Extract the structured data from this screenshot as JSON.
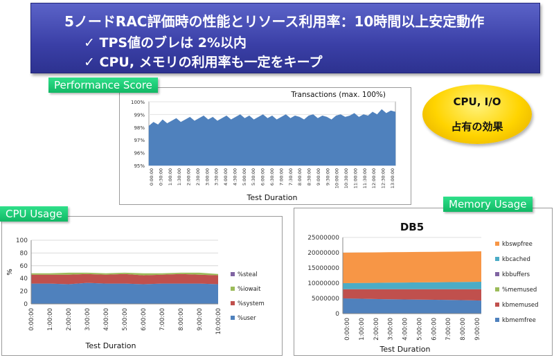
{
  "banner": {
    "title": "5ノードRAC評価時の性能とリソース利用率：10時間以上安定動作",
    "bullet1": "✓ TPS値のブレは 2%以内",
    "bullet2": "✓ CPU, メモリの利用率も一定をキープ"
  },
  "callout": {
    "line1": "CPU, I/O",
    "line2": "占有の効果"
  },
  "panels": {
    "performance_label": "Performance Score",
    "cpu_label": "CPU Usage",
    "memory_label": "Memory Usage"
  },
  "colors": {
    "banner": "#3a3fa6",
    "tag_green": "#12b865",
    "callout_yellow": "#ffd400",
    "tps_fill": "#4f81bd",
    "user": "#4f81bd",
    "system": "#c0504d",
    "iowait": "#9bbb59",
    "steal": "#8064a2",
    "kbmemfree": "#4f81bd",
    "kbmemused": "#c0504d",
    "memused_pct": "#9bbb59",
    "kbbuffers": "#8064a2",
    "kbcached": "#4bacc6",
    "kbswpfree": "#f79646"
  },
  "chart_data": [
    {
      "id": "tps",
      "type": "area",
      "title": "Transactions (max. 100%)",
      "xlabel": "Test Duration",
      "ylabel": "",
      "y_ticks": [
        "95%",
        "96%",
        "97%",
        "98%",
        "99%",
        "100%"
      ],
      "ylim": [
        95,
        100
      ],
      "x_ticks": [
        "0:00:00",
        "0:30:00",
        "1:00:00",
        "1:30:00",
        "2:00:00",
        "2:30:00",
        "3:00:00",
        "3:30:00",
        "4:00:00",
        "4:30:00",
        "5:00:00",
        "5:30:00",
        "6:00:00",
        "6:30:00",
        "7:00:00",
        "7:30:00",
        "8:00:00",
        "8:30:00",
        "9:00:00",
        "9:30:00",
        "10:00:00",
        "10:30:00",
        "11:00:00",
        "11:30:00",
        "12:00:00",
        "12:30:00",
        "13:00:00"
      ],
      "series": [
        {
          "values": [
            98.1,
            98.4,
            98.2,
            98.6,
            98.3,
            98.5,
            98.7,
            98.4,
            98.6,
            98.8,
            98.5,
            98.7,
            98.9,
            98.6,
            98.8,
            98.5,
            98.7,
            98.9,
            98.6,
            98.8,
            99.0,
            98.7,
            98.9,
            98.6,
            98.8,
            99.0,
            98.7,
            98.9,
            98.6,
            98.8,
            99.0,
            98.7,
            98.9,
            98.8,
            98.6,
            98.9,
            99.0,
            98.7,
            98.9,
            98.8,
            98.6,
            98.9,
            99.0,
            98.8,
            98.9,
            99.1,
            98.8,
            99.0,
            98.9,
            99.2,
            99.0,
            99.4,
            99.1,
            99.3,
            99.2
          ]
        }
      ],
      "grid": true
    },
    {
      "id": "cpu",
      "type": "area",
      "stacked": true,
      "title": "",
      "xlabel": "Test Duration",
      "ylabel": "%",
      "ylim": [
        0,
        100
      ],
      "y_ticks": [
        "0",
        "10",
        "20",
        "30",
        "40",
        "50",
        "60",
        "70",
        "80",
        "90",
        "100"
      ],
      "x_ticks": [
        "0:00:00",
        "1:00:00",
        "2:00:00",
        "3:00:00",
        "4:00:00",
        "5:00:00",
        "6:00:00",
        "7:00:00",
        "8:00:00",
        "9:00:00",
        "10:00:00"
      ],
      "legend": [
        "%steal",
        "%iowait",
        "%system",
        "%user"
      ],
      "series": [
        {
          "name": "%user",
          "values": [
            32,
            32,
            31,
            33,
            32,
            32,
            31,
            32,
            32,
            32,
            31
          ]
        },
        {
          "name": "%system",
          "values": [
            14,
            14,
            15,
            14,
            14,
            15,
            14,
            14,
            15,
            14,
            14
          ]
        },
        {
          "name": "%iowait",
          "values": [
            2,
            2,
            3,
            2,
            2,
            2,
            3,
            2,
            2,
            3,
            2
          ]
        },
        {
          "name": "%steal",
          "values": [
            0,
            0,
            0,
            0,
            0,
            0,
            0,
            0,
            0,
            0,
            0
          ]
        }
      ],
      "grid": true
    },
    {
      "id": "mem",
      "type": "area",
      "stacked": true,
      "title": "DB5",
      "xlabel": "Test Duration",
      "ylabel": "",
      "ylim": [
        0,
        25000000
      ],
      "y_ticks": [
        "0",
        "5000000",
        "10000000",
        "15000000",
        "20000000",
        "25000000"
      ],
      "x_ticks": [
        "0:00:00",
        "1:00:00",
        "2:00:00",
        "3:00:00",
        "4:00:00",
        "5:00:00",
        "6:00:00",
        "7:00:00",
        "8:00:00",
        "9:00:00"
      ],
      "legend": [
        "kbswpfree",
        "kbcached",
        "kbbuffers",
        "%memused",
        "kbmemused",
        "kbmemfree"
      ],
      "series": [
        {
          "name": "kbmemfree",
          "values": [
            5000000,
            4900000,
            4800000,
            4700000,
            4650000,
            4600000,
            4550000,
            4500000,
            4400000,
            4300000
          ]
        },
        {
          "name": "kbmemused",
          "values": [
            3000000,
            3100000,
            3200000,
            3300000,
            3350000,
            3400000,
            3450000,
            3500000,
            3600000,
            3700000
          ]
        },
        {
          "name": "%memused",
          "values": [
            0,
            0,
            0,
            0,
            0,
            0,
            0,
            0,
            0,
            0
          ]
        },
        {
          "name": "kbbuffers",
          "values": [
            0,
            0,
            0,
            0,
            0,
            0,
            0,
            0,
            0,
            0
          ]
        },
        {
          "name": "kbcached",
          "values": [
            2000000,
            2050000,
            2100000,
            2150000,
            2200000,
            2250000,
            2300000,
            2350000,
            2400000,
            2450000
          ]
        },
        {
          "name": "kbswpfree",
          "values": [
            10000000,
            10000000,
            10000000,
            10000000,
            10000000,
            10000000,
            10000000,
            10000000,
            10000000,
            10000000
          ]
        }
      ],
      "grid": true
    }
  ]
}
